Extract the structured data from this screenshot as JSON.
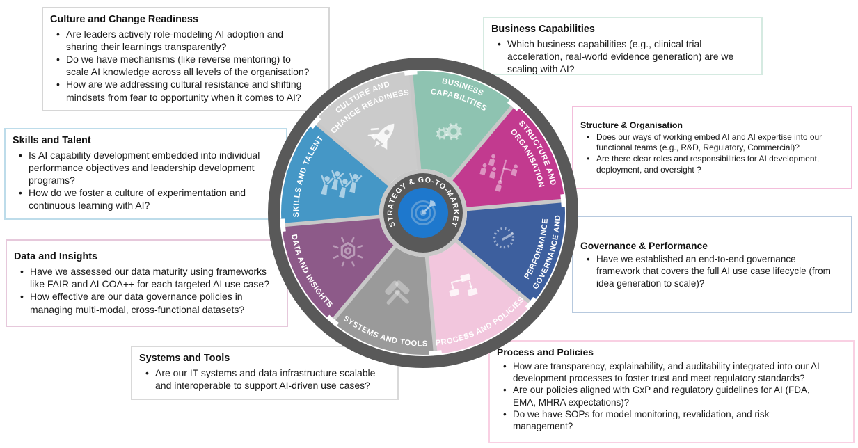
{
  "wheel": {
    "center": {
      "label": "STRATEGY & GO-TO-MARKET",
      "icon": "target-dart-icon",
      "hub_color": "#595959",
      "core_color": "#1e78cd",
      "target_color": "#5b9bd5"
    },
    "ring_color": "#595959",
    "gap_color": "#c8c8c8",
    "segments": [
      {
        "id": "structure",
        "label_lines": [
          "STRUCTURE AND",
          "ORGANISATION"
        ],
        "color": "#c23a8f",
        "icon": "org-structure-icon"
      },
      {
        "id": "business",
        "label_lines": [
          "BUSINESS",
          "CAPABILITIES"
        ],
        "color": "#8ec3b1",
        "icon": "gears-icon"
      },
      {
        "id": "culture",
        "label_lines": [
          "CULTURE AND",
          "CHANGE READINESS"
        ],
        "color": "#cbcbcb",
        "icon": "rocket-icon"
      },
      {
        "id": "skills",
        "label_lines": [
          "SKILLS AND TALENT"
        ],
        "color": "#4597c6",
        "icon": "team-people-icon"
      },
      {
        "id": "data",
        "label_lines": [
          "DATA AND INSIGHTS"
        ],
        "color": "#8d5a89",
        "icon": "idea-gear-icon"
      },
      {
        "id": "systems",
        "label_lines": [
          "SYSTEMS AND TOOLS"
        ],
        "color": "#9a9a9a",
        "icon": "tools-icon"
      },
      {
        "id": "process",
        "label_lines": [
          "PROCESS AND POLICIES"
        ],
        "color": "#f2c6dd",
        "icon": "workflow-icon"
      },
      {
        "id": "governance",
        "label_lines": [
          "GOVERNANCE AND",
          "PERFORMANCE"
        ],
        "color": "#3d5f9e",
        "icon": "gauge-icon"
      }
    ]
  },
  "boxes": [
    {
      "id": "culture",
      "title": "Culture and Change Readiness",
      "border_color": "#d6d6d6",
      "bullets": [
        "Are leaders actively role-modeling AI adoption and\nsharing their learnings transparently?",
        "Do we have mechanisms (like reverse mentoring) to\nscale AI knowledge across all levels of the organisation?",
        "How are we addressing cultural resistance and shifting\nmindsets from fear to opportunity when it comes to AI?"
      ]
    },
    {
      "id": "business",
      "title": "Business Capabilities",
      "border_color": "#d5eae1",
      "bullets": [
        "Which business capabilities (e.g., clinical trial\nacceleration, real-world evidence generation) are we\nscaling with AI?"
      ]
    },
    {
      "id": "structure",
      "title": "Structure & Organisation",
      "border_color": "#f3bedb",
      "bullets": [
        "Does our ways of working embed AI and AI expertise into our\nfunctional teams (e.g., R&D, Regulatory, Commercial)?",
        "Are there clear roles and responsibilities for AI development,\ndeployment, and oversight ?"
      ]
    },
    {
      "id": "governance",
      "title": "Governance & Performance",
      "border_color": "#b7c9de",
      "bullets": [
        "Have we established an end-to-end governance\nframework that covers the full AI use case lifecycle (from\nidea generation to scale)?"
      ]
    },
    {
      "id": "process",
      "title": "Process and Policies",
      "border_color": "#f9d0e3",
      "bullets": [
        "How are transparency, explainability, and auditability integrated into our AI\ndevelopment processes to foster trust and meet regulatory standards?",
        "Are our policies aligned with GxP and regulatory guidelines for AI (FDA,\nEMA, MHRA expectations)?",
        "Do we have SOPs for model monitoring, revalidation, and risk\nmanagement?"
      ]
    },
    {
      "id": "systems",
      "title": "Systems and Tools",
      "border_color": "#d9d9d9",
      "bullets": [
        "Are our IT systems and data infrastructure scalable\nand interoperable to support AI-driven use cases?"
      ]
    },
    {
      "id": "data",
      "title": "Data and Insights",
      "border_color": "#e6c8db",
      "bullets": [
        "Have we assessed our data maturity using frameworks\nlike FAIR and ALCOA++ for each targeted AI use case?",
        "How effective are our data governance policies in\nmanaging multi-modal, cross-functional datasets?"
      ]
    },
    {
      "id": "skills",
      "title": "Skills and Talent",
      "border_color": "#bddcea",
      "bullets": [
        "Is AI capability development embedded into individual\nperformance objectives and leadership development\nprograms?",
        "How do we foster a culture of experimentation and\ncontinuous learning with AI?"
      ]
    }
  ]
}
